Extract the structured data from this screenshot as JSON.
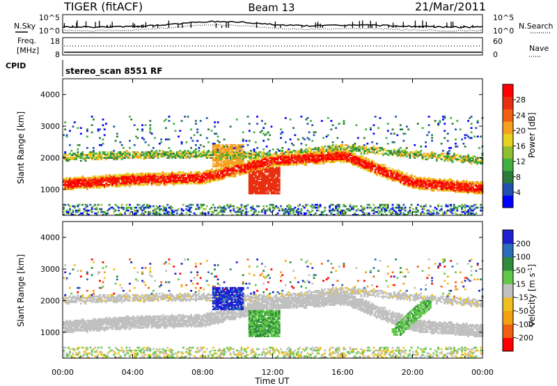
{
  "header": {
    "station": "TIGER (fitACF)",
    "beam": "Beam 13",
    "date": "21/Mar/2011"
  },
  "noise_panel": {
    "left_label": "N.Sky",
    "right_label": "N.Search",
    "left_ticks": [
      "10^5",
      "10^0"
    ],
    "right_ticks": [
      "10^5",
      "10^0"
    ]
  },
  "freq_panel": {
    "left_label_1": "Freq.",
    "left_label_2": "[MHz]",
    "right_label": "Nave",
    "left_ticks": [
      "18",
      "8"
    ],
    "right_ticks": [
      "60",
      "0"
    ]
  },
  "cpid": {
    "label": "CPID",
    "value": "stereo_scan 8551 RF"
  },
  "chart_data": [
    {
      "type": "heatmap",
      "parameter": "Power",
      "ylabel": "Slant Range [km]",
      "xlabel": "Time UT",
      "ylim": [
        180,
        4500
      ],
      "yticks": [
        "1000",
        "2000",
        "3000",
        "4000"
      ],
      "xlim": [
        0,
        24
      ],
      "xticks": [
        "00:00",
        "04:00",
        "08:00",
        "12:00",
        "16:00",
        "20:00",
        "00:00"
      ],
      "colorbar": {
        "label": "Power [dB]",
        "ticks": [
          "4",
          "8",
          "12",
          "16",
          "20",
          "24",
          "28"
        ],
        "colors": [
          "#0000ff",
          "#2050b0",
          "#2a7a3a",
          "#40b040",
          "#90c030",
          "#e6d020",
          "#f5a020",
          "#f06010",
          "#e83010",
          "#ff0000"
        ]
      },
      "features": [
        {
          "feature": "F-region band",
          "range_km_at_hours": [
            [
              0,
              1150
            ],
            [
              4,
              1300
            ],
            [
              8,
              1350
            ],
            [
              12,
              1900
            ],
            [
              16,
              2050
            ],
            [
              20,
              1200
            ],
            [
              24,
              1000
            ]
          ],
          "power_db": 28
        },
        {
          "feature": "upper band",
          "range_km_at_hours": [
            [
              0,
              2000
            ],
            [
              6,
              2100
            ],
            [
              12,
              2050
            ],
            [
              16,
              2300
            ],
            [
              20,
              2100
            ],
            [
              24,
              1900
            ]
          ],
          "power_db": 14
        }
      ]
    },
    {
      "type": "heatmap",
      "parameter": "Velocity",
      "ylabel": "Slant Range [km]",
      "xlabel": "Time UT",
      "ylim": [
        180,
        4500
      ],
      "yticks": [
        "1000",
        "2000",
        "3000",
        "4000"
      ],
      "xlim": [
        0,
        24
      ],
      "xticks": [
        "00:00",
        "04:00",
        "08:00",
        "12:00",
        "16:00",
        "20:00",
        "00:00"
      ],
      "colorbar": {
        "label": "Velocity [m s",
        "label_sup": "-1",
        "label_end": "]",
        "ticks": [
          "200",
          "100",
          "50",
          "15",
          "-15",
          "-50",
          "-100",
          "-200"
        ],
        "colors": [
          "#1f1fd0",
          "#2a6db8",
          "#2e8b3a",
          "#62c84a",
          "#c0c0c0",
          "#f0c020",
          "#f0a010",
          "#f06010",
          "#ff0000"
        ]
      },
      "features": [
        {
          "feature": "ground scatter (grey)",
          "velocity_ms": 0
        },
        {
          "feature": "blue patch",
          "time_hours": [
            8.5,
            10.3
          ],
          "range_km": [
            1700,
            2400
          ],
          "velocity_ms": 200
        },
        {
          "feature": "green patch",
          "time_hours": [
            10.6,
            12.4
          ],
          "range_km": [
            850,
            1700
          ],
          "velocity_ms": 80
        },
        {
          "feature": "green arc",
          "time_hours": [
            18.8,
            21.0
          ],
          "range_km": [
            900,
            2000
          ],
          "velocity_ms": 50
        }
      ]
    }
  ]
}
